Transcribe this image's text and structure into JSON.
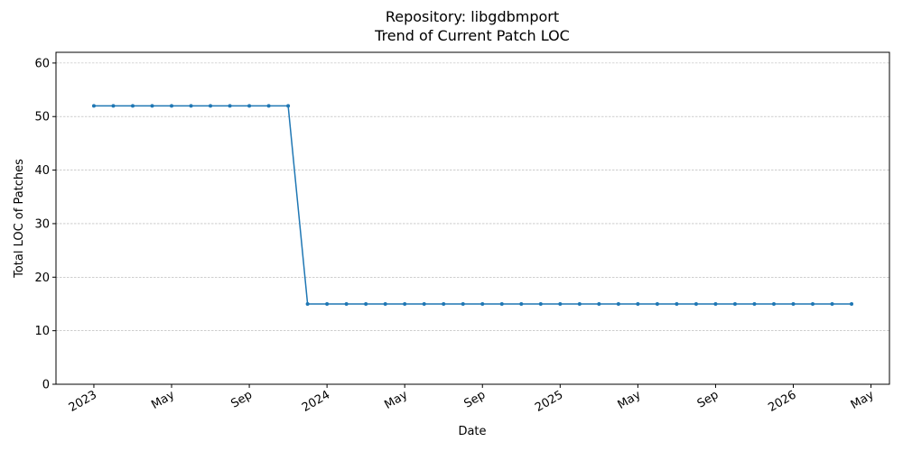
{
  "chart_data": {
    "type": "line",
    "title": "Repository: libgdbmport",
    "subtitle": "Trend of Current Patch LOC",
    "x_label": "Date",
    "y_label": "Total LOC of Patches",
    "color": "#1f77b4",
    "grid": true,
    "x": [
      "2023-01",
      "2023-02",
      "2023-03",
      "2023-04",
      "2023-05",
      "2023-06",
      "2023-07",
      "2023-08",
      "2023-09",
      "2023-10",
      "2023-11",
      "2023-12",
      "2024-01",
      "2024-02",
      "2024-03",
      "2024-04",
      "2024-05",
      "2024-06",
      "2024-07",
      "2024-08",
      "2024-09",
      "2024-10",
      "2024-11",
      "2024-12",
      "2025-01",
      "2025-02",
      "2025-03",
      "2025-04",
      "2025-05",
      "2025-06",
      "2025-07",
      "2025-08",
      "2025-09",
      "2025-10",
      "2025-11",
      "2025-12",
      "2026-01",
      "2026-02",
      "2026-03",
      "2026-04"
    ],
    "values": [
      52,
      52,
      52,
      52,
      52,
      52,
      52,
      52,
      52,
      52,
      52,
      15,
      15,
      15,
      15,
      15,
      15,
      15,
      15,
      15,
      15,
      15,
      15,
      15,
      15,
      15,
      15,
      15,
      15,
      15,
      15,
      15,
      15,
      15,
      15,
      15,
      15,
      15,
      15,
      15
    ],
    "xlim": [
      "2022-11",
      "2026-06"
    ],
    "xticks": [
      {
        "value": "2023-01",
        "label": "2023"
      },
      {
        "value": "2023-05",
        "label": "May"
      },
      {
        "value": "2023-09",
        "label": "Sep"
      },
      {
        "value": "2024-01",
        "label": "2024"
      },
      {
        "value": "2024-05",
        "label": "May"
      },
      {
        "value": "2024-09",
        "label": "Sep"
      },
      {
        "value": "2025-01",
        "label": "2025"
      },
      {
        "value": "2025-05",
        "label": "May"
      },
      {
        "value": "2025-09",
        "label": "Sep"
      },
      {
        "value": "2026-01",
        "label": "2026"
      },
      {
        "value": "2026-05",
        "label": "May"
      }
    ],
    "ylim": [
      0,
      62
    ],
    "yticks": [
      0,
      10,
      20,
      30,
      40,
      50,
      60
    ]
  }
}
